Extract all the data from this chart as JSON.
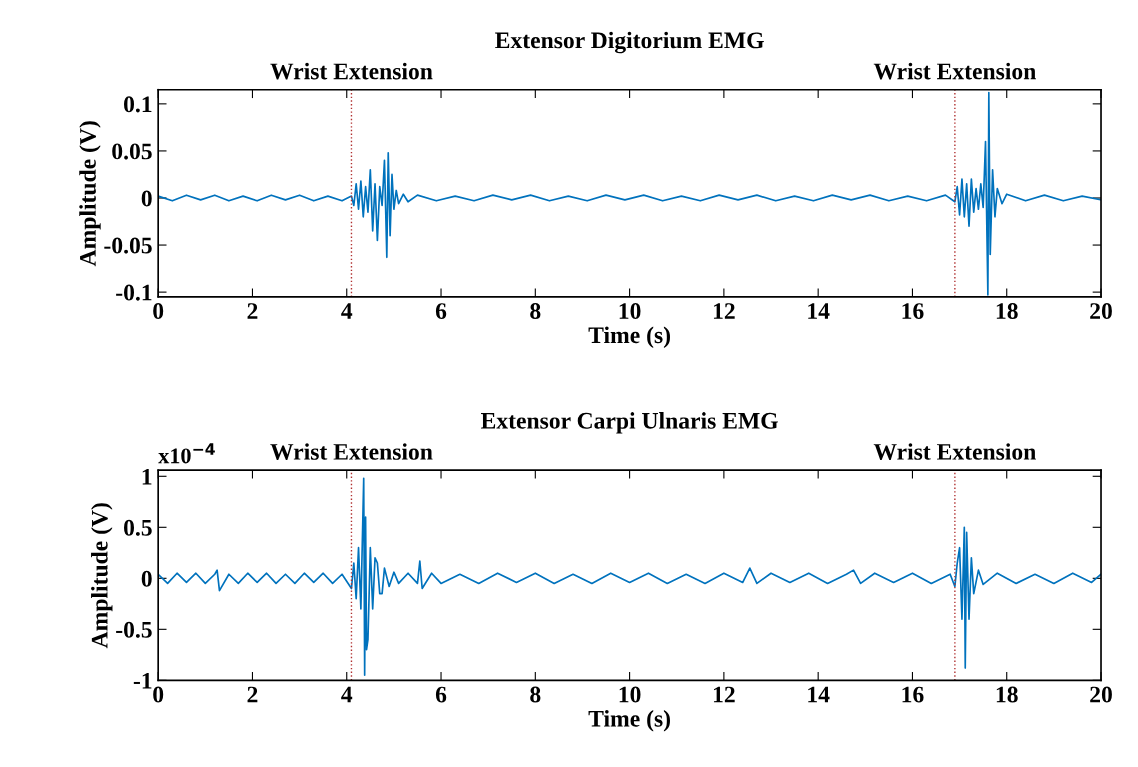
{
  "chart_data": [
    {
      "type": "line",
      "title": "Extensor Digitorium EMG",
      "xlabel": "Time (s)",
      "ylabel": "Amplitude (V)",
      "xlim": [
        0,
        20
      ],
      "xticks": [
        0,
        2,
        4,
        6,
        8,
        10,
        12,
        14,
        16,
        18,
        20
      ],
      "ylim": [
        -0.105,
        0.115
      ],
      "yticks": [
        -0.1,
        -0.05,
        0,
        0.05,
        0.1
      ],
      "grid": false,
      "legend": false,
      "marker": "none",
      "line_style": "solid",
      "ref_lines": [
        {
          "axis": "x",
          "value": 4.1,
          "label": "Wrist Extension",
          "color": "#b03030",
          "line_style": "dotted"
        },
        {
          "axis": "x",
          "value": 16.9,
          "label": "Wrist Extension",
          "color": "#b03030",
          "line_style": "dotted"
        }
      ],
      "series": [
        {
          "color": "#0072bd",
          "x": [
            0,
            0.3,
            0.6,
            0.9,
            1.2,
            1.5,
            1.8,
            2.1,
            2.4,
            2.7,
            3.0,
            3.3,
            3.6,
            3.9,
            4.1,
            4.15,
            4.2,
            4.25,
            4.3,
            4.35,
            4.4,
            4.45,
            4.5,
            4.55,
            4.6,
            4.65,
            4.7,
            4.75,
            4.8,
            4.85,
            4.88,
            4.92,
            4.96,
            5.0,
            5.05,
            5.1,
            5.2,
            5.3,
            5.5,
            5.9,
            6.3,
            6.7,
            7.1,
            7.5,
            7.9,
            8.3,
            8.7,
            9.1,
            9.5,
            9.9,
            10.3,
            10.7,
            11.1,
            11.5,
            11.9,
            12.3,
            12.7,
            13.1,
            13.5,
            13.9,
            14.3,
            14.7,
            15.1,
            15.5,
            15.9,
            16.3,
            16.7,
            16.9,
            16.95,
            17.0,
            17.05,
            17.1,
            17.15,
            17.2,
            17.25,
            17.3,
            17.35,
            17.4,
            17.45,
            17.5,
            17.55,
            17.6,
            17.62,
            17.65,
            17.7,
            17.75,
            17.8,
            17.9,
            18.0,
            18.4,
            18.8,
            19.2,
            19.6,
            20.0
          ],
          "values": [
            0.002,
            -0.003,
            0.003,
            -0.002,
            0.003,
            -0.003,
            0.002,
            -0.003,
            0.003,
            -0.002,
            0.003,
            -0.003,
            0.002,
            -0.003,
            0.002,
            -0.008,
            0.015,
            -0.012,
            0.018,
            -0.02,
            0.012,
            -0.015,
            0.03,
            -0.035,
            0.015,
            -0.045,
            0.012,
            -0.008,
            0.04,
            -0.063,
            0.048,
            -0.04,
            0.025,
            -0.012,
            0.008,
            -0.006,
            0.004,
            -0.004,
            0.003,
            -0.003,
            0.002,
            -0.003,
            0.003,
            -0.002,
            0.003,
            -0.003,
            0.002,
            -0.003,
            0.003,
            -0.002,
            0.003,
            -0.003,
            0.002,
            -0.003,
            0.003,
            -0.002,
            0.003,
            -0.003,
            0.002,
            -0.003,
            0.003,
            -0.002,
            0.003,
            -0.003,
            0.002,
            -0.003,
            0.003,
            -0.004,
            0.012,
            -0.018,
            0.02,
            -0.02,
            0.015,
            -0.03,
            0.02,
            -0.015,
            0.01,
            -0.012,
            0.015,
            -0.01,
            0.06,
            -0.103,
            0.112,
            -0.06,
            0.03,
            -0.02,
            0.01,
            -0.006,
            0.004,
            -0.003,
            0.003,
            -0.003,
            0.002,
            -0.002
          ]
        }
      ]
    },
    {
      "type": "line",
      "title": "Extensor Carpi Ulnaris EMG",
      "xlabel": "Time (s)",
      "ylabel": "Amplitude (V)",
      "xlim": [
        0,
        20
      ],
      "xticks": [
        0,
        2,
        4,
        6,
        8,
        10,
        12,
        14,
        16,
        18,
        20
      ],
      "ylim": [
        -1,
        1.06
      ],
      "yticks": [
        -1,
        -0.5,
        0,
        0.5,
        1
      ],
      "grid": false,
      "legend": false,
      "marker": "none",
      "line_style": "solid",
      "annotations": [
        "x10$^{−4}$"
      ],
      "ref_lines": [
        {
          "axis": "x",
          "value": 4.1,
          "label": "Wrist Extension",
          "color": "#b03030",
          "line_style": "dotted"
        },
        {
          "axis": "x",
          "value": 16.9,
          "label": "Wrist Extension",
          "color": "#b03030",
          "line_style": "dotted"
        }
      ],
      "series": [
        {
          "color": "#0072bd",
          "x": [
            0,
            0.2,
            0.4,
            0.6,
            0.8,
            1.0,
            1.2,
            1.25,
            1.3,
            1.5,
            1.7,
            1.9,
            2.1,
            2.3,
            2.5,
            2.7,
            2.9,
            3.1,
            3.3,
            3.5,
            3.7,
            3.9,
            4.1,
            4.15,
            4.2,
            4.25,
            4.3,
            4.33,
            4.36,
            4.38,
            4.4,
            4.42,
            4.45,
            4.5,
            4.55,
            4.6,
            4.65,
            4.7,
            4.75,
            4.8,
            4.9,
            5.0,
            5.1,
            5.3,
            5.5,
            5.55,
            5.6,
            5.8,
            6.0,
            6.4,
            6.8,
            7.2,
            7.6,
            8.0,
            8.4,
            8.8,
            9.2,
            9.6,
            10.0,
            10.4,
            10.8,
            11.2,
            11.6,
            12.0,
            12.4,
            12.55,
            12.7,
            13.0,
            13.4,
            13.8,
            14.2,
            14.6,
            14.75,
            14.9,
            15.2,
            15.6,
            16.0,
            16.4,
            16.8,
            16.9,
            16.95,
            17.0,
            17.05,
            17.1,
            17.12,
            17.15,
            17.2,
            17.25,
            17.3,
            17.4,
            17.5,
            17.8,
            18.2,
            18.6,
            19.0,
            19.4,
            19.8,
            20.0
          ],
          "values": [
            0.04,
            -0.05,
            0.05,
            -0.04,
            0.05,
            -0.05,
            0.04,
            0.08,
            -0.12,
            0.04,
            -0.05,
            0.05,
            -0.04,
            0.05,
            -0.05,
            0.04,
            -0.05,
            0.05,
            -0.04,
            0.05,
            -0.05,
            0.04,
            -0.1,
            0.15,
            -0.2,
            0.3,
            -0.3,
            0.35,
            0.98,
            -0.95,
            0.6,
            -0.7,
            -0.6,
            0.3,
            -0.3,
            0.2,
            0.15,
            -0.15,
            -0.15,
            0.1,
            -0.08,
            0.06,
            -0.05,
            0.05,
            -0.05,
            0.17,
            -0.1,
            0.05,
            -0.05,
            0.04,
            -0.05,
            0.05,
            -0.04,
            0.05,
            -0.05,
            0.04,
            -0.05,
            0.05,
            -0.04,
            0.05,
            -0.05,
            0.04,
            -0.05,
            0.05,
            -0.04,
            0.1,
            -0.05,
            0.05,
            -0.04,
            0.05,
            -0.05,
            0.04,
            0.08,
            -0.05,
            0.05,
            -0.04,
            0.05,
            -0.05,
            0.04,
            -0.08,
            0.15,
            0.3,
            -0.4,
            0.5,
            -0.88,
            0.45,
            -0.4,
            0.2,
            -0.15,
            0.08,
            -0.06,
            0.05,
            -0.05,
            0.04,
            -0.05,
            0.05,
            -0.04,
            0.04
          ]
        }
      ]
    }
  ]
}
